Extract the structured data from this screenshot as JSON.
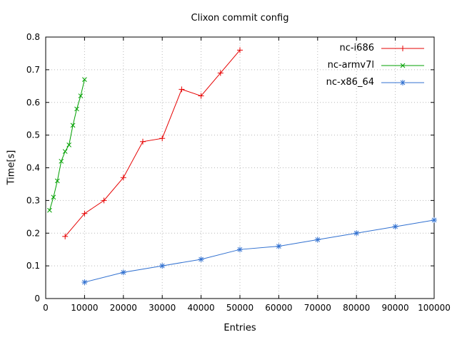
{
  "page": {
    "background": "#ffffff",
    "border_color": "#000000",
    "grid_color": "#b8b8b8"
  },
  "chart_data": {
    "type": "line",
    "title": "Clixon commit config",
    "xlabel": "Entries",
    "ylabel": "Time[s]",
    "xlim": [
      0,
      100000
    ],
    "ylim": [
      0,
      0.8
    ],
    "x_ticks": [
      0,
      10000,
      20000,
      30000,
      40000,
      50000,
      60000,
      70000,
      80000,
      90000,
      100000
    ],
    "y_ticks": [
      0,
      0.1,
      0.2,
      0.3,
      0.4,
      0.5,
      0.6,
      0.7,
      0.8
    ],
    "grid": true,
    "legend_position": "top-right",
    "series": [
      {
        "name": "nc-i686",
        "color": "#e60000",
        "marker": "plus",
        "x": [
          5000,
          10000,
          15000,
          20000,
          25000,
          30000,
          35000,
          40000,
          45000,
          50000
        ],
        "y": [
          0.19,
          0.26,
          0.3,
          0.37,
          0.48,
          0.49,
          0.64,
          0.62,
          0.69,
          0.76
        ]
      },
      {
        "name": "nc-armv7l",
        "color": "#00a000",
        "marker": "cross",
        "x": [
          1000,
          2000,
          3000,
          4000,
          5000,
          6000,
          7000,
          8000,
          9000,
          10000
        ],
        "y": [
          0.27,
          0.31,
          0.36,
          0.42,
          0.45,
          0.47,
          0.53,
          0.58,
          0.62,
          0.67
        ]
      },
      {
        "name": "nc-x86_64",
        "color": "#3070d0",
        "marker": "asterisk",
        "x": [
          10000,
          20000,
          30000,
          40000,
          50000,
          60000,
          70000,
          80000,
          90000,
          100000
        ],
        "y": [
          0.05,
          0.08,
          0.1,
          0.12,
          0.15,
          0.16,
          0.18,
          0.2,
          0.22,
          0.24
        ]
      }
    ]
  }
}
